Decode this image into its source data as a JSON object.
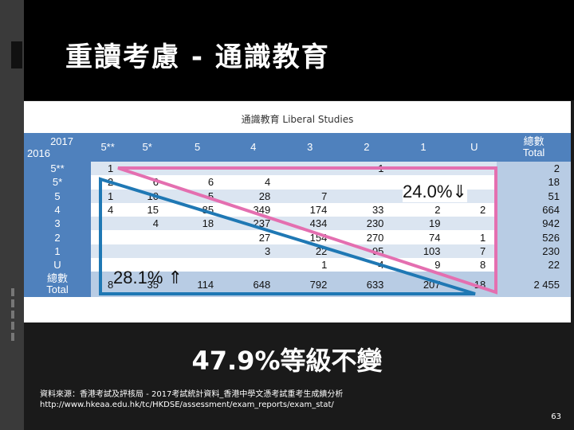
{
  "title": "重讀考慮 - 通識教育",
  "table": {
    "caption": "通識教育 Liberal Studies",
    "corner_top": "2017",
    "corner_bottom": "2016",
    "col_headers": [
      "5**",
      "5*",
      "5",
      "4",
      "3",
      "2",
      "1",
      "U",
      "總數\nTotal"
    ],
    "rows": [
      {
        "label": "5**",
        "cells": [
          "1",
          "",
          "",
          "",
          "",
          "1",
          "",
          "",
          "2"
        ]
      },
      {
        "label": "5*",
        "cells": [
          "2",
          "6",
          "6",
          "4",
          "",
          "",
          "",
          "",
          "18"
        ]
      },
      {
        "label": "5",
        "cells": [
          "1",
          "10",
          "5",
          "28",
          "7",
          "",
          "",
          "",
          "51"
        ]
      },
      {
        "label": "4",
        "cells": [
          "4",
          "15",
          "85",
          "349",
          "174",
          "33",
          "2",
          "2",
          "664"
        ]
      },
      {
        "label": "3",
        "cells": [
          "",
          "4",
          "18",
          "237",
          "434",
          "230",
          "19",
          "",
          "942"
        ]
      },
      {
        "label": "2",
        "cells": [
          "",
          "",
          "",
          "27",
          "154",
          "270",
          "74",
          "1",
          "526"
        ]
      },
      {
        "label": "1",
        "cells": [
          "",
          "",
          "",
          "3",
          "22",
          "95",
          "103",
          "7",
          "230"
        ]
      },
      {
        "label": "U",
        "cells": [
          "",
          "",
          "",
          "",
          "1",
          "4",
          "9",
          "8",
          "22"
        ]
      }
    ],
    "total_label": "總數\nTotal",
    "total_cells": [
      "8",
      "35",
      "114",
      "648",
      "792",
      "633",
      "207",
      "18",
      "2 455"
    ]
  },
  "annotations": {
    "pink": "24.0%⇓",
    "blue": "28.1% ⇑",
    "pink_color": "#e46fb0",
    "blue_color": "#1f78b4"
  },
  "headline": "47.9%等級不變",
  "source_line1": "資料來源：香港考試及評核局 - 2017考試統計資料_香港中學文憑考試重考生成績分析",
  "source_line2": "http://www.hkeaa.edu.hk/tc/HKDSE/assessment/exam_reports/exam_stat/",
  "page_number": "63"
}
